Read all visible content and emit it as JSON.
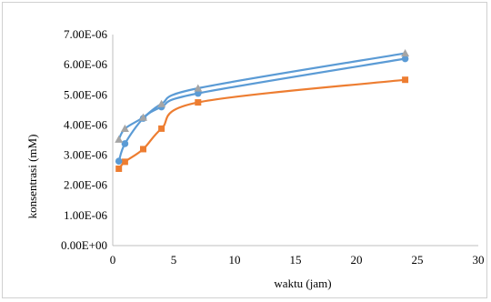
{
  "chart_data": {
    "type": "line",
    "xlabel": "waktu (jam)",
    "ylabel": "konsentrasi (mM)",
    "xlim": [
      0,
      30
    ],
    "ylim": [
      0,
      7e-06
    ],
    "x_ticks": [
      "0",
      "5",
      "10",
      "15",
      "20",
      "25",
      "30"
    ],
    "y_ticks": [
      "0.00E+00",
      "1.00E-06",
      "2.00E-06",
      "3.00E-06",
      "4.00E-06",
      "5.00E-06",
      "6.00E-06",
      "7.00E-06"
    ],
    "grid": false,
    "legend": "none",
    "series": [
      {
        "color": "#ED7D31",
        "marker": "square",
        "points": [
          [
            0.5,
            2.55e-06
          ],
          [
            1,
            2.78e-06
          ],
          [
            2.5,
            3.2e-06
          ],
          [
            4,
            3.88e-06
          ],
          [
            7,
            4.75e-06
          ],
          [
            24,
            5.5e-06
          ]
        ]
      },
      {
        "color": "#5B9BD5",
        "marker": "circle",
        "points": [
          [
            0.5,
            2.8e-06
          ],
          [
            1,
            3.38e-06
          ],
          [
            2.5,
            4.22e-06
          ],
          [
            4,
            4.6e-06
          ],
          [
            7,
            5.05e-06
          ],
          [
            24,
            6.2e-06
          ]
        ]
      },
      {
        "color": "#A5A5A5",
        "line_color": "#5B9BD5",
        "marker": "triangle",
        "points": [
          [
            0.5,
            3.52e-06
          ],
          [
            1,
            3.88e-06
          ],
          [
            2.5,
            4.25e-06
          ],
          [
            4,
            4.7e-06
          ],
          [
            7,
            5.22e-06
          ],
          [
            24,
            6.38e-06
          ]
        ]
      }
    ]
  }
}
